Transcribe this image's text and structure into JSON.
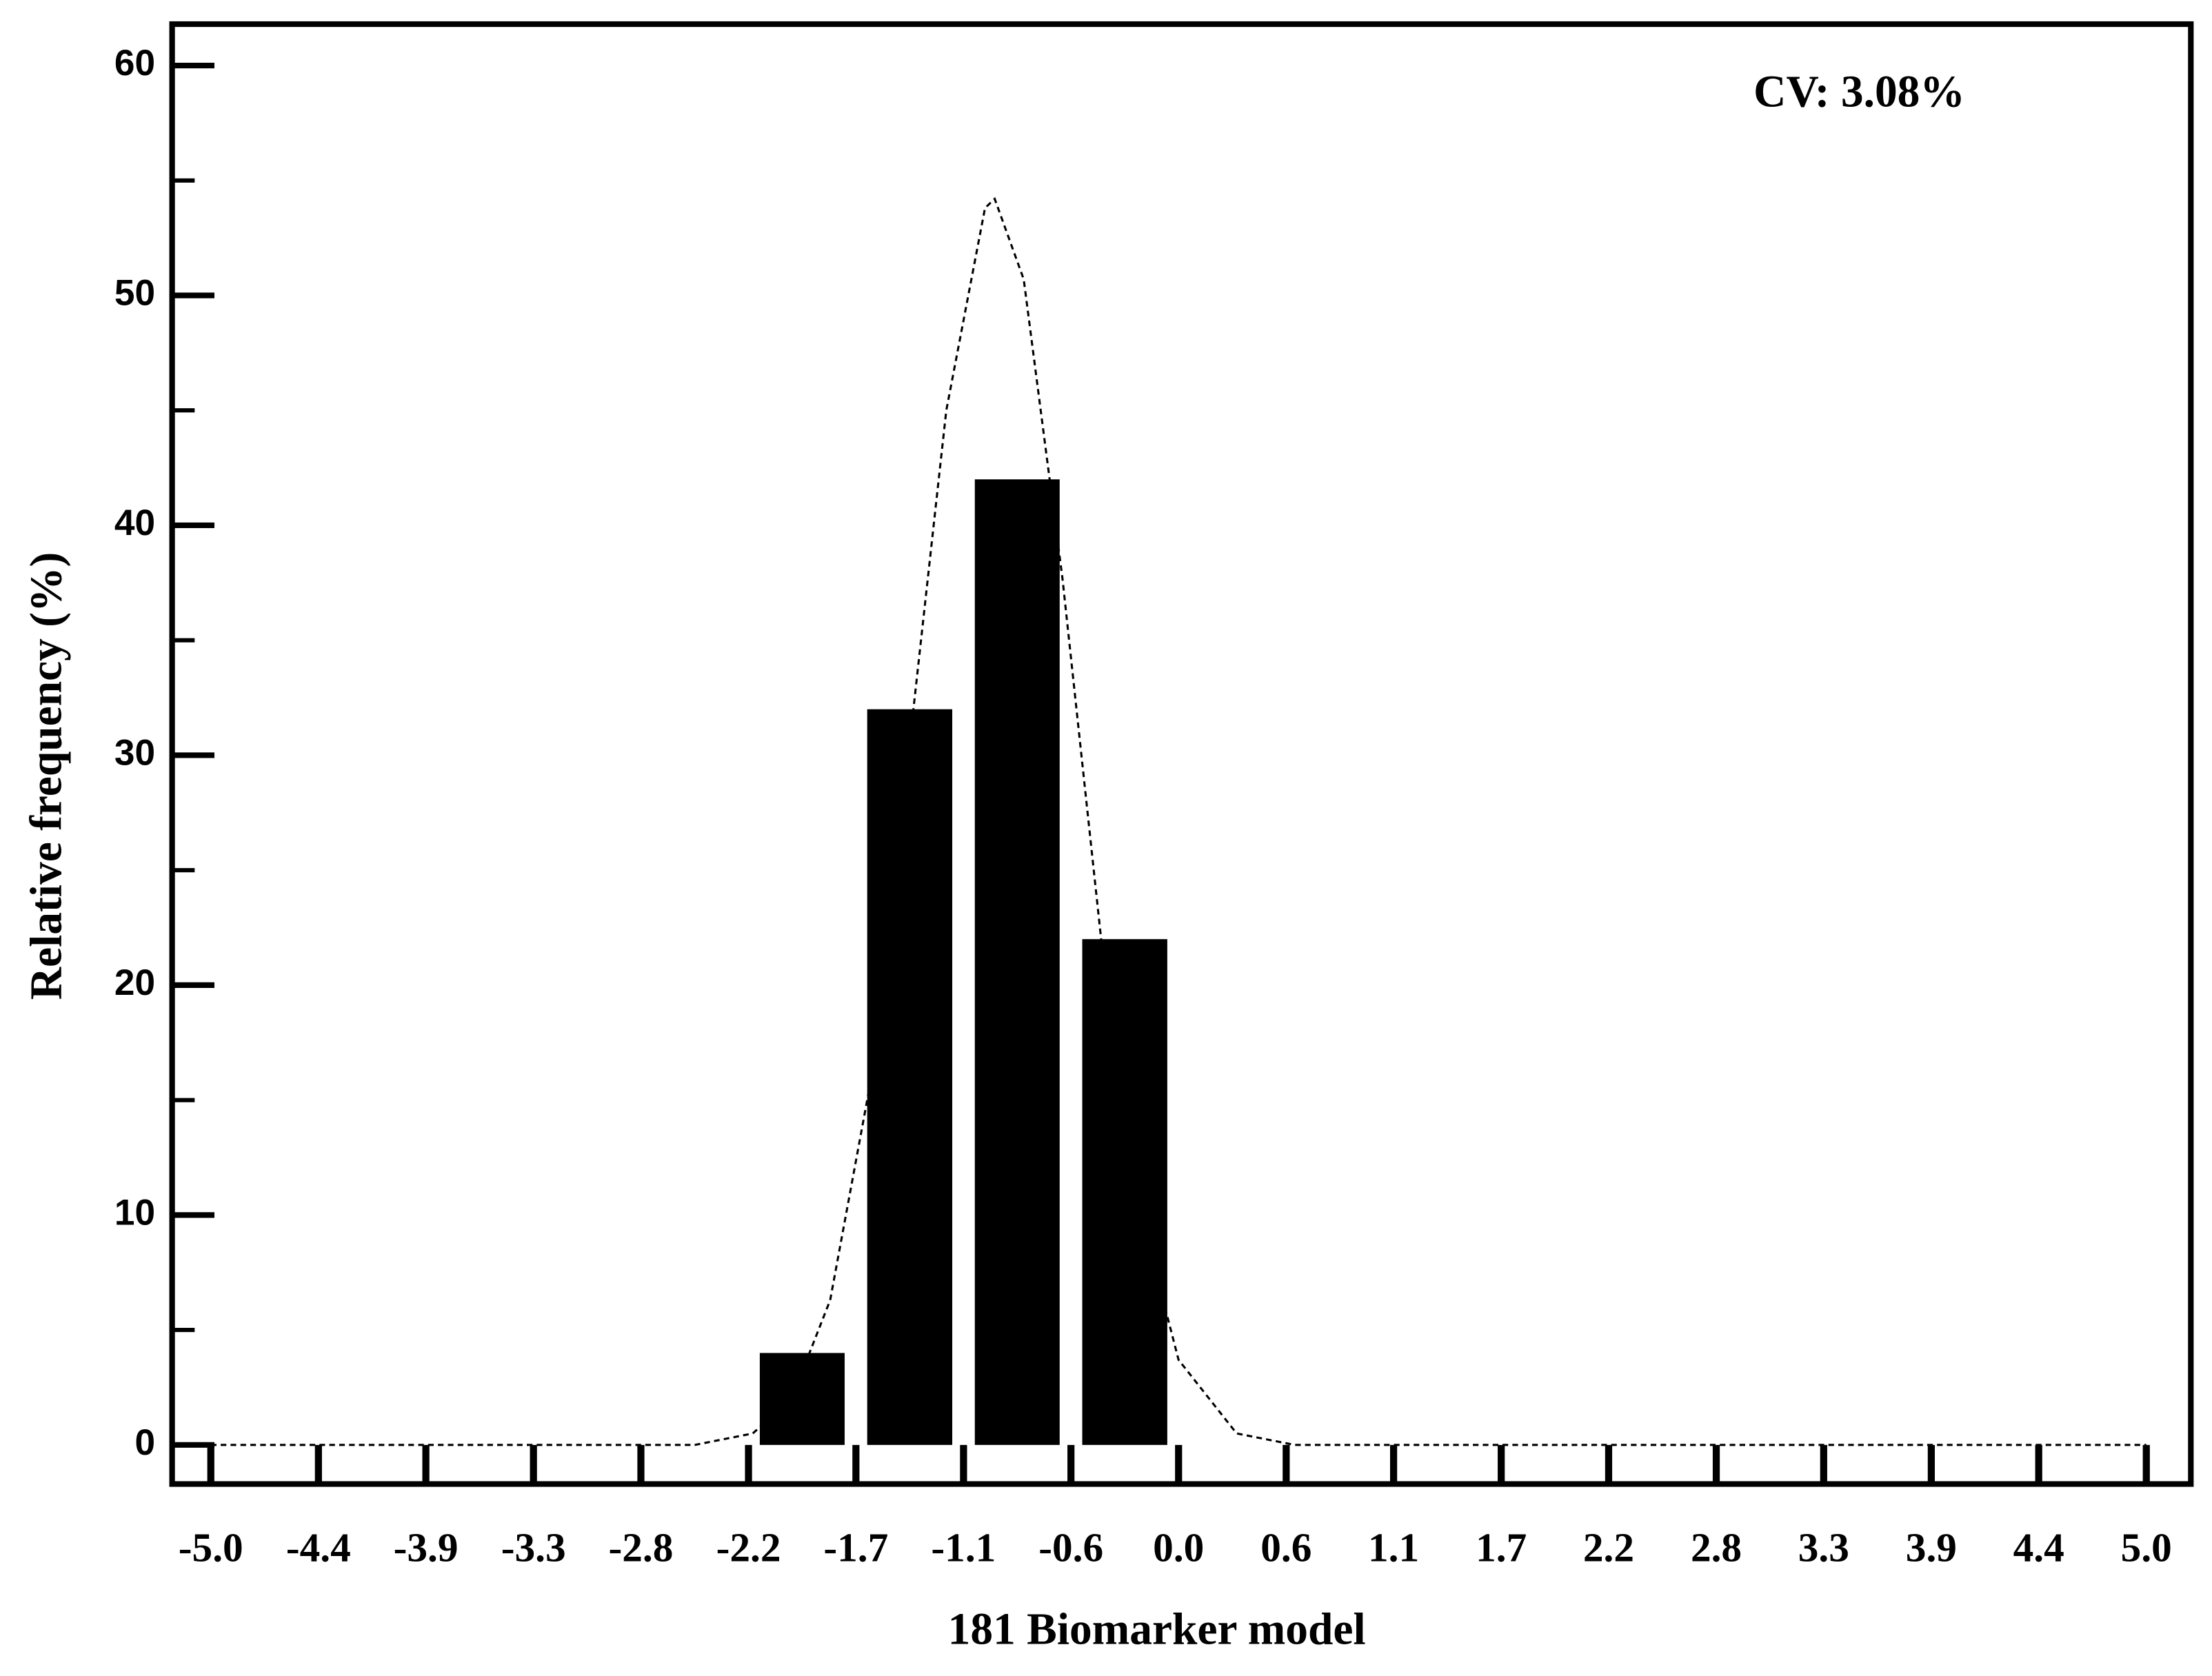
{
  "chart_data": {
    "type": "histogram",
    "xlabel": "181 Biomarker model",
    "ylabel": "Relative frequency (%)",
    "annotation": "CV: 3.08%",
    "bins": [
      -2.222,
      -1.667,
      -1.111,
      -0.556,
      0
    ],
    "counts": [
      4,
      32,
      42,
      22
    ],
    "color": "#000000",
    "curve": {
      "x": [
        -5,
        -2.5,
        -2.2,
        -2.0,
        -1.8,
        -1.6,
        -1.4,
        -1.2,
        -1.0,
        -0.95,
        -0.8,
        -0.6,
        -0.4,
        -0.2,
        0,
        0.3,
        0.6,
        5
      ],
      "values": [
        0,
        0,
        0.5,
        2.0,
        6.3,
        15.4,
        29.7,
        45.0,
        53.8,
        54.2,
        50.7,
        37.7,
        22.0,
        10.2,
        3.7,
        0.5,
        0,
        0
      ]
    },
    "xlim": [
      -5.2,
      5.23
    ],
    "ylim": [
      -1.7,
      61.8
    ],
    "xticks": [
      {
        "value": -5,
        "label": "-5.0"
      },
      {
        "value": -4.444,
        "label": "-4.4"
      },
      {
        "value": -3.889,
        "label": "-3.9"
      },
      {
        "value": -3.333,
        "label": "-3.3"
      },
      {
        "value": -2.778,
        "label": "-2.8"
      },
      {
        "value": -2.222,
        "label": "-2.2"
      },
      {
        "value": -1.667,
        "label": "-1.7"
      },
      {
        "value": -1.111,
        "label": "-1.1"
      },
      {
        "value": -0.556,
        "label": "-0.6"
      },
      {
        "value": 0,
        "label": "0.0"
      },
      {
        "value": 0.556,
        "label": "0.6"
      },
      {
        "value": 1.111,
        "label": "1.1"
      },
      {
        "value": 1.667,
        "label": "1.7"
      },
      {
        "value": 2.222,
        "label": "2.2"
      },
      {
        "value": 2.778,
        "label": "2.8"
      },
      {
        "value": 3.333,
        "label": "3.3"
      },
      {
        "value": 3.889,
        "label": "3.9"
      },
      {
        "value": 4.444,
        "label": "4.4"
      },
      {
        "value": 5,
        "label": "5.0"
      }
    ],
    "yticks": [
      0,
      10,
      20,
      30,
      40,
      50,
      60
    ],
    "yminorticks": [
      5,
      15,
      25,
      35,
      45,
      55
    ],
    "grid": false
  }
}
